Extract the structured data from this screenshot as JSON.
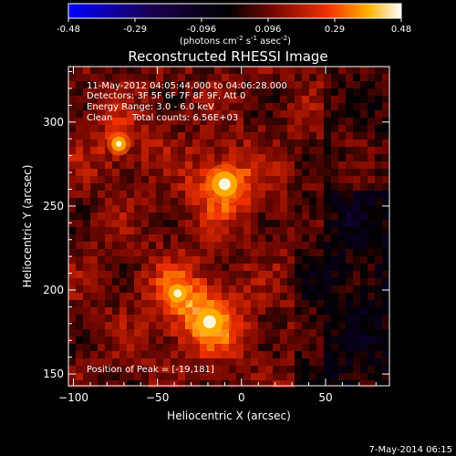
{
  "colorbar": {
    "tick_labels": [
      "-0.48",
      "-0.29",
      "-0.096",
      "0.096",
      "0.29",
      "0.48"
    ],
    "unit_base": "(photons cm",
    "unit_sup1": "-2",
    "unit_mid": " s",
    "unit_sup2": "-1",
    "unit_mid2": " asec",
    "unit_sup3": "-2",
    "unit_end": ")"
  },
  "chart_data": {
    "type": "heatmap",
    "title": "Reconstructed RHESSI Image",
    "xlabel": "Heliocentric X (arcsec)",
    "ylabel": "Heliocentric Y (arcsec)",
    "xlim": [
      -103,
      88
    ],
    "ylim": [
      143,
      333
    ],
    "x_ticks": [
      -100,
      -50,
      0,
      50
    ],
    "y_ticks": [
      150,
      200,
      250,
      300
    ],
    "colorbar_range": [
      -0.48,
      0.48
    ],
    "annotations": [
      "11-May-2012 04:05:44.000 to 04:06:28.000",
      "Detectors: 3F 5F 6F 7F 8F 9F, Att 0",
      "Energy Range: 3.0 - 6.0 keV",
      "Clean",
      "Total counts: 6.56E+03"
    ],
    "peak_label": "Position of Peak = [-19,181]",
    "sources": [
      {
        "x": -19,
        "y": 181,
        "intensity": 0.48
      },
      {
        "x": -10,
        "y": 263,
        "intensity": 0.44
      },
      {
        "x": -38,
        "y": 198,
        "intensity": 0.3
      },
      {
        "x": -73,
        "y": 287,
        "intensity": 0.22
      }
    ]
  },
  "footer": {
    "timestamp": "7-May-2014 06:15"
  }
}
